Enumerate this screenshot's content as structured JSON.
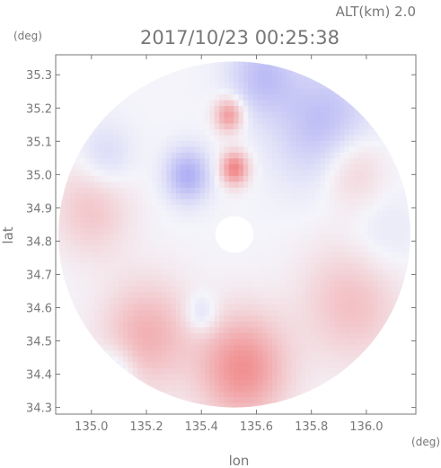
{
  "header": {
    "altitude_label": "ALT(km) 2.0",
    "timestamp": "2017/10/23 00:25:38"
  },
  "chart_data": {
    "type": "heatmap",
    "title": "2017/10/23 00:25:38",
    "subtitle": "ALT(km) 2.0",
    "xlabel": "lon",
    "ylabel": "lat",
    "x_unit": "(deg)",
    "y_unit": "(deg)",
    "xlim": [
      134.87,
      136.18
    ],
    "ylim": [
      34.28,
      35.36
    ],
    "x_ticks": [
      135.0,
      135.2,
      135.4,
      135.6,
      135.8,
      136.0
    ],
    "x_tick_labels": [
      "135.0",
      "135.2",
      "135.4",
      "135.6",
      "135.8",
      "136.0"
    ],
    "y_ticks": [
      34.3,
      34.4,
      34.5,
      34.6,
      34.7,
      34.8,
      34.9,
      35.0,
      35.1,
      35.2,
      35.3
    ],
    "y_tick_labels": [
      "34.3",
      "34.4",
      "34.5",
      "34.6",
      "34.7",
      "34.8",
      "34.9",
      "35.0",
      "35.1",
      "35.2",
      "35.3"
    ],
    "radar_center": {
      "lon": 135.52,
      "lat": 34.82
    },
    "radar_range_deg": {
      "lon": 0.64,
      "lat": 0.52
    },
    "blind_range_deg": {
      "lon": 0.07,
      "lat": 0.055
    },
    "colors": {
      "positive": "#f07070",
      "negative": "#7878f0",
      "neutral": "#f4f4fa",
      "axis": "#777777"
    },
    "regions": [
      {
        "name": "strong-positive-north",
        "lon": 135.52,
        "lat": 35.02,
        "radius": 0.05,
        "value": 0.85
      },
      {
        "name": "positive-north-strip",
        "lon": 135.5,
        "lat": 35.18,
        "radius": 0.05,
        "value": 0.7
      },
      {
        "name": "negative-northeast",
        "lon": 135.85,
        "lat": 35.15,
        "radius": 0.18,
        "value": -0.45
      },
      {
        "name": "negative-north-edge",
        "lon": 135.62,
        "lat": 35.3,
        "radius": 0.12,
        "value": -0.4
      },
      {
        "name": "negative-northwest",
        "lon": 135.35,
        "lat": 35.0,
        "radius": 0.08,
        "value": -0.55
      },
      {
        "name": "positive-northeast-band",
        "lon": 135.95,
        "lat": 35.02,
        "radius": 0.12,
        "value": 0.35
      },
      {
        "name": "neutral-east",
        "lon": 136.05,
        "lat": 34.8,
        "radius": 0.14,
        "value": -0.15
      },
      {
        "name": "positive-southeast",
        "lon": 135.95,
        "lat": 34.62,
        "radius": 0.18,
        "value": 0.4
      },
      {
        "name": "strong-positive-south",
        "lon": 135.55,
        "lat": 34.42,
        "radius": 0.16,
        "value": 0.75
      },
      {
        "name": "positive-southwest",
        "lon": 135.2,
        "lat": 34.52,
        "radius": 0.16,
        "value": 0.5
      },
      {
        "name": "negative-southwest-edge",
        "lon": 135.08,
        "lat": 34.4,
        "radius": 0.08,
        "value": -0.35
      },
      {
        "name": "negative-south-center",
        "lon": 135.4,
        "lat": 34.58,
        "radius": 0.06,
        "value": -0.3
      },
      {
        "name": "positive-west-block",
        "lon": 135.0,
        "lat": 34.9,
        "radius": 0.14,
        "value": 0.35
      },
      {
        "name": "negative-west-block",
        "lon": 135.05,
        "lat": 35.05,
        "radius": 0.1,
        "value": -0.25
      }
    ]
  }
}
